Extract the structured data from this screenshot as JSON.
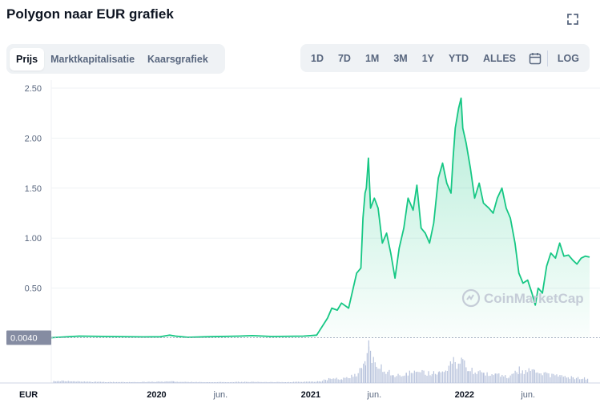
{
  "header": {
    "title": "Polygon naar EUR grafiek"
  },
  "tabs": [
    {
      "label": "Prijs",
      "active": true
    },
    {
      "label": "Marktkapitalisatie",
      "active": false
    },
    {
      "label": "Kaarsgrafiek",
      "active": false
    }
  ],
  "ranges": [
    "1D",
    "7D",
    "1M",
    "3M",
    "1Y",
    "YTD",
    "ALLES"
  ],
  "log_label": "LOG",
  "icons": {
    "fullscreen": "expand-icon",
    "calendar": "calendar-icon"
  },
  "colors": {
    "line": "#16c784",
    "area": "#16c784",
    "volume": "#b8c3dc",
    "grid": "#eff2f5"
  },
  "watermark": "CoinMarketCap",
  "chart_data": {
    "type": "area",
    "currency_label": "EUR",
    "baseline_label": "0.0040",
    "yticks": [
      "0.50",
      "1.00",
      "1.50",
      "2.00",
      "2.50"
    ],
    "ylim": [
      0,
      2.5
    ],
    "xlim": [
      "2019-04-26",
      "2022-10-25"
    ],
    "xticks": [
      {
        "date": "2020-01-01",
        "label": "2020",
        "bold": true
      },
      {
        "date": "2020-06-01",
        "label": "jun.",
        "bold": false
      },
      {
        "date": "2021-01-01",
        "label": "2021",
        "bold": true
      },
      {
        "date": "2021-06-01",
        "label": "jun.",
        "bold": false
      },
      {
        "date": "2022-01-01",
        "label": "2022",
        "bold": true
      },
      {
        "date": "2022-06-01",
        "label": "jun.",
        "bold": false
      }
    ],
    "grid": true,
    "series": [
      {
        "points": [
          [
            "2019-04-26",
            0.004
          ],
          [
            "2019-07-01",
            0.02
          ],
          [
            "2019-10-01",
            0.015
          ],
          [
            "2019-12-01",
            0.012
          ],
          [
            "2020-01-10",
            0.014
          ],
          [
            "2020-02-01",
            0.03
          ],
          [
            "2020-02-15",
            0.02
          ],
          [
            "2020-03-15",
            0.008
          ],
          [
            "2020-05-01",
            0.014
          ],
          [
            "2020-07-15",
            0.02
          ],
          [
            "2020-08-15",
            0.025
          ],
          [
            "2020-10-01",
            0.016
          ],
          [
            "2020-12-15",
            0.02
          ],
          [
            "2021-01-15",
            0.03
          ],
          [
            "2021-02-10",
            0.2
          ],
          [
            "2021-02-20",
            0.3
          ],
          [
            "2021-03-05",
            0.28
          ],
          [
            "2021-03-15",
            0.35
          ],
          [
            "2021-04-01",
            0.3
          ],
          [
            "2021-04-20",
            0.65
          ],
          [
            "2021-04-30",
            0.7
          ],
          [
            "2021-05-05",
            1.2
          ],
          [
            "2021-05-10",
            1.45
          ],
          [
            "2021-05-13",
            1.5
          ],
          [
            "2021-05-18",
            1.8
          ],
          [
            "2021-05-23",
            1.3
          ],
          [
            "2021-06-01",
            1.4
          ],
          [
            "2021-06-10",
            1.3
          ],
          [
            "2021-06-20",
            0.95
          ],
          [
            "2021-06-30",
            1.05
          ],
          [
            "2021-07-10",
            0.85
          ],
          [
            "2021-07-20",
            0.6
          ],
          [
            "2021-07-30",
            0.9
          ],
          [
            "2021-08-10",
            1.1
          ],
          [
            "2021-08-20",
            1.4
          ],
          [
            "2021-09-01",
            1.28
          ],
          [
            "2021-09-10",
            1.53
          ],
          [
            "2021-09-20",
            1.1
          ],
          [
            "2021-09-30",
            1.05
          ],
          [
            "2021-10-10",
            0.95
          ],
          [
            "2021-10-20",
            1.15
          ],
          [
            "2021-10-31",
            1.6
          ],
          [
            "2021-11-10",
            1.75
          ],
          [
            "2021-11-20",
            1.55
          ],
          [
            "2021-11-30",
            1.45
          ],
          [
            "2021-12-05",
            1.8
          ],
          [
            "2021-12-10",
            2.1
          ],
          [
            "2021-12-18",
            2.3
          ],
          [
            "2021-12-24",
            2.4
          ],
          [
            "2021-12-28",
            2.1
          ],
          [
            "2022-01-05",
            1.95
          ],
          [
            "2022-01-15",
            1.7
          ],
          [
            "2022-01-25",
            1.4
          ],
          [
            "2022-02-05",
            1.55
          ],
          [
            "2022-02-15",
            1.35
          ],
          [
            "2022-02-28",
            1.3
          ],
          [
            "2022-03-10",
            1.25
          ],
          [
            "2022-03-20",
            1.4
          ],
          [
            "2022-03-31",
            1.5
          ],
          [
            "2022-04-10",
            1.3
          ],
          [
            "2022-04-20",
            1.2
          ],
          [
            "2022-05-01",
            0.95
          ],
          [
            "2022-05-10",
            0.65
          ],
          [
            "2022-05-20",
            0.55
          ],
          [
            "2022-05-31",
            0.58
          ],
          [
            "2022-06-10",
            0.45
          ],
          [
            "2022-06-18",
            0.33
          ],
          [
            "2022-06-25",
            0.5
          ],
          [
            "2022-07-05",
            0.45
          ],
          [
            "2022-07-15",
            0.72
          ],
          [
            "2022-07-25",
            0.85
          ],
          [
            "2022-08-05",
            0.8
          ],
          [
            "2022-08-15",
            0.95
          ],
          [
            "2022-08-25",
            0.82
          ],
          [
            "2022-09-05",
            0.83
          ],
          [
            "2022-09-15",
            0.78
          ],
          [
            "2022-09-25",
            0.74
          ],
          [
            "2022-10-05",
            0.8
          ],
          [
            "2022-10-15",
            0.82
          ],
          [
            "2022-10-25",
            0.81
          ]
        ]
      }
    ],
    "volume": {
      "relative": true,
      "points": [
        [
          "2019-05-01",
          0.06
        ],
        [
          "2019-08-01",
          0.03
        ],
        [
          "2019-11-01",
          0.02
        ],
        [
          "2020-02-10",
          0.04
        ],
        [
          "2020-05-01",
          0.02
        ],
        [
          "2020-08-01",
          0.03
        ],
        [
          "2020-11-01",
          0.02
        ],
        [
          "2021-01-20",
          0.04
        ],
        [
          "2021-02-15",
          0.12
        ],
        [
          "2021-03-15",
          0.1
        ],
        [
          "2021-04-15",
          0.2
        ],
        [
          "2021-05-01",
          0.4
        ],
        [
          "2021-05-10",
          0.6
        ],
        [
          "2021-05-18",
          1.0
        ],
        [
          "2021-05-25",
          0.75
        ],
        [
          "2021-06-05",
          0.35
        ],
        [
          "2021-06-20",
          0.4
        ],
        [
          "2021-07-15",
          0.2
        ],
        [
          "2021-08-15",
          0.25
        ],
        [
          "2021-09-10",
          0.3
        ],
        [
          "2021-10-15",
          0.25
        ],
        [
          "2021-11-01",
          0.3
        ],
        [
          "2021-12-05",
          0.55
        ],
        [
          "2021-12-20",
          0.45
        ],
        [
          "2021-12-27",
          0.6
        ],
        [
          "2022-01-10",
          0.35
        ],
        [
          "2022-02-15",
          0.25
        ],
        [
          "2022-03-15",
          0.22
        ],
        [
          "2022-04-15",
          0.15
        ],
        [
          "2022-05-10",
          0.35
        ],
        [
          "2022-06-15",
          0.3
        ],
        [
          "2022-07-15",
          0.22
        ],
        [
          "2022-08-15",
          0.18
        ],
        [
          "2022-09-15",
          0.14
        ],
        [
          "2022-10-20",
          0.12
        ]
      ]
    }
  }
}
